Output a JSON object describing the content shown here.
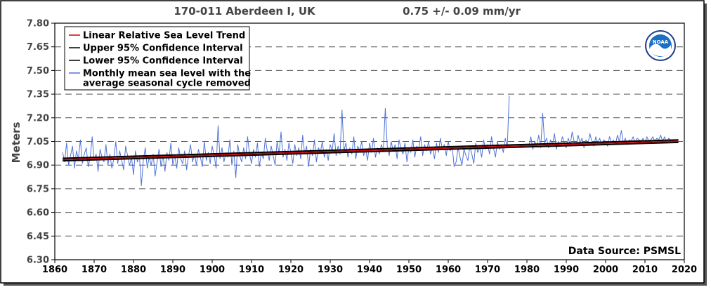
{
  "header": {
    "station": "170-011 Aberdeen I, UK",
    "rate": "0.75 +/-  0.09 mm/yr"
  },
  "chart_data": {
    "type": "line",
    "title": "170-011 Aberdeen I, UK",
    "subtitle": "0.75 +/-  0.09 mm/yr",
    "xlabel": "",
    "ylabel": "Meters",
    "xlim": [
      1860,
      2020
    ],
    "ylim": [
      6.3,
      7.8
    ],
    "x_ticks": [
      "1860",
      "1870",
      "1880",
      "1890",
      "1900",
      "1910",
      "1920",
      "1930",
      "1940",
      "1950",
      "1960",
      "1970",
      "1980",
      "1990",
      "2000",
      "2010",
      "2020"
    ],
    "y_ticks": [
      "7.80",
      "7.65",
      "7.50",
      "7.35",
      "7.20",
      "7.05",
      "6.90",
      "6.75",
      "6.60",
      "6.45",
      "6.30"
    ],
    "grid": "horizontal dashed",
    "legend_position": "top-left",
    "annotation": "Data Source: PSMSL",
    "logo_text": "NOAA",
    "colors": {
      "trend": "#cc0000",
      "confidence": "#000000",
      "monthly": "#4f74d6"
    },
    "series": [
      {
        "name": "Linear Relative Sea Level Trend",
        "kind": "trend",
        "x": [
          1862,
          2018.5
        ],
        "y": [
          6.935,
          7.052
        ]
      },
      {
        "name": "Upper 95% Confidence Interval",
        "kind": "ci",
        "x": [
          1862,
          2018.5
        ],
        "y": [
          6.943,
          7.06
        ]
      },
      {
        "name": "Lower 95% Confidence Interval",
        "kind": "ci",
        "x": [
          1862,
          2018.5
        ],
        "y": [
          6.927,
          7.044
        ]
      },
      {
        "name": "Monthly mean sea level with the average seasonal cycle removed",
        "kind": "monthly",
        "x_start": 1862.0,
        "x_step": 0.5,
        "values": [
          6.98,
          6.92,
          7.04,
          6.9,
          6.96,
          7.02,
          6.88,
          6.99,
          6.94,
          7.06,
          6.91,
          6.97,
          7.01,
          6.89,
          6.95,
          7.08,
          6.93,
          6.97,
          6.86,
          7.0,
          6.95,
          6.92,
          7.03,
          6.9,
          6.97,
          6.88,
          6.94,
          7.05,
          6.91,
          6.99,
          6.93,
          6.87,
          7.02,
          6.96,
          6.9,
          6.95,
          6.84,
          6.99,
          6.92,
          6.96,
          6.77,
          6.93,
          7.01,
          6.88,
          6.95,
          6.9,
          6.97,
          6.83,
          6.92,
          7.0,
          6.89,
          6.96,
          6.86,
          6.98,
          6.93,
          7.04,
          6.9,
          6.96,
          6.88,
          7.01,
          6.94,
          6.91,
          6.99,
          6.87,
          6.96,
          7.03,
          6.92,
          6.97,
          6.9,
          7.0,
          6.95,
          6.89,
          7.05,
          6.93,
          6.98,
          6.91,
          7.02,
          6.96,
          6.88,
          7.15,
          6.94,
          7.01,
          6.92,
          6.98,
          6.95,
          7.06,
          6.9,
          6.99,
          6.82,
          7.03,
          6.96,
          6.92,
          7.01,
          6.94,
          7.08,
          6.97,
          6.91,
          7.0,
          6.95,
          7.04,
          6.89,
          6.98,
          6.94,
          7.07,
          6.99,
          6.93,
          7.02,
          6.96,
          6.9,
          7.05,
          6.97,
          7.11,
          6.95,
          7.0,
          6.93,
          7.04,
          6.98,
          6.91,
          7.03,
          6.96,
          7.01,
          6.94,
          7.09,
          6.97,
          7.02,
          6.89,
          7.0,
          6.96,
          7.06,
          6.92,
          7.01,
          6.98,
          7.05,
          6.95,
          7.0,
          6.93,
          7.03,
          6.99,
          7.1,
          6.96,
          7.02,
          6.97,
          7.25,
          6.99,
          7.04,
          6.95,
          7.01,
          6.97,
          7.08,
          6.94,
          7.02,
          6.99,
          7.05,
          6.96,
          7.0,
          6.93,
          7.04,
          6.98,
          7.07,
          6.95,
          7.01,
          6.97,
          7.03,
          6.99,
          7.26,
          7.02,
          6.96,
          7.05,
          6.99,
          7.03,
          6.94,
          7.06,
          7.0,
          6.97,
          7.04,
          6.92,
          7.01,
          6.98,
          7.06,
          6.95,
          7.02,
          7.0,
          7.08,
          6.96,
          7.03,
          6.99,
          7.05,
          6.97,
          7.01,
          6.94,
          7.04,
          6.98,
          7.07,
          7.0,
          7.03,
          6.96,
          7.05,
          6.99,
          7.02,
          6.89,
          6.92,
          7.01,
          6.95,
          6.9,
          7.0,
          6.96,
          6.93,
          7.02,
          6.97,
          6.91,
          7.04,
          6.98,
          7.01,
          6.95,
          7.06,
          7.0,
          7.03,
          6.97,
          7.08,
          7.01,
          6.95,
          7.05,
          7.0,
          7.03,
          6.98,
          7.07,
          7.01,
          7.34,
          7.02,
          7.06,
          6.99,
          7.04,
          7.01,
          7.1,
          7.03,
          6.98,
          7.06,
          7.02,
          7.08,
          7.0,
          7.05,
          7.02,
          7.09,
          7.01,
          7.23,
          7.04,
          7.07,
          7.01,
          7.06,
          7.03,
          7.1,
          7.0,
          7.05,
          7.02,
          7.08,
          7.04,
          7.01,
          7.07,
          7.03,
          7.11,
          7.05,
          7.02,
          7.09,
          7.04,
          7.07,
          7.01,
          7.06,
          7.03,
          7.1,
          7.05,
          7.02,
          7.08,
          7.04,
          7.07,
          7.03,
          7.06,
          7.05,
          7.02,
          7.08,
          7.04,
          7.06,
          7.03,
          7.09,
          7.05,
          7.12,
          7.04,
          7.07,
          7.03,
          7.06,
          7.05,
          7.08,
          7.04,
          7.07,
          7.06,
          7.05,
          7.07,
          7.04,
          7.08,
          7.05,
          7.06,
          7.08,
          7.05,
          7.07,
          7.06,
          7.09,
          7.05,
          7.08,
          7.04,
          7.07,
          7.06
        ],
        "gaps": [
          [
            1975.5,
            1980.5
          ]
        ]
      }
    ]
  }
}
